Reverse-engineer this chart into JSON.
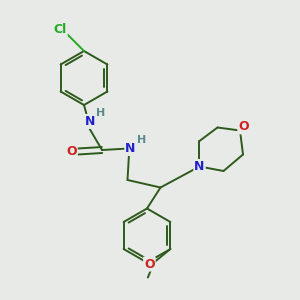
{
  "background_color": "#e8eae8",
  "bond_color": "#2d5a1b",
  "atom_colors": {
    "Cl": "#22aa22",
    "N": "#2222cc",
    "O": "#cc2222",
    "H": "#5a8a8a"
  },
  "figsize": [
    3.0,
    3.0
  ],
  "dpi": 100
}
